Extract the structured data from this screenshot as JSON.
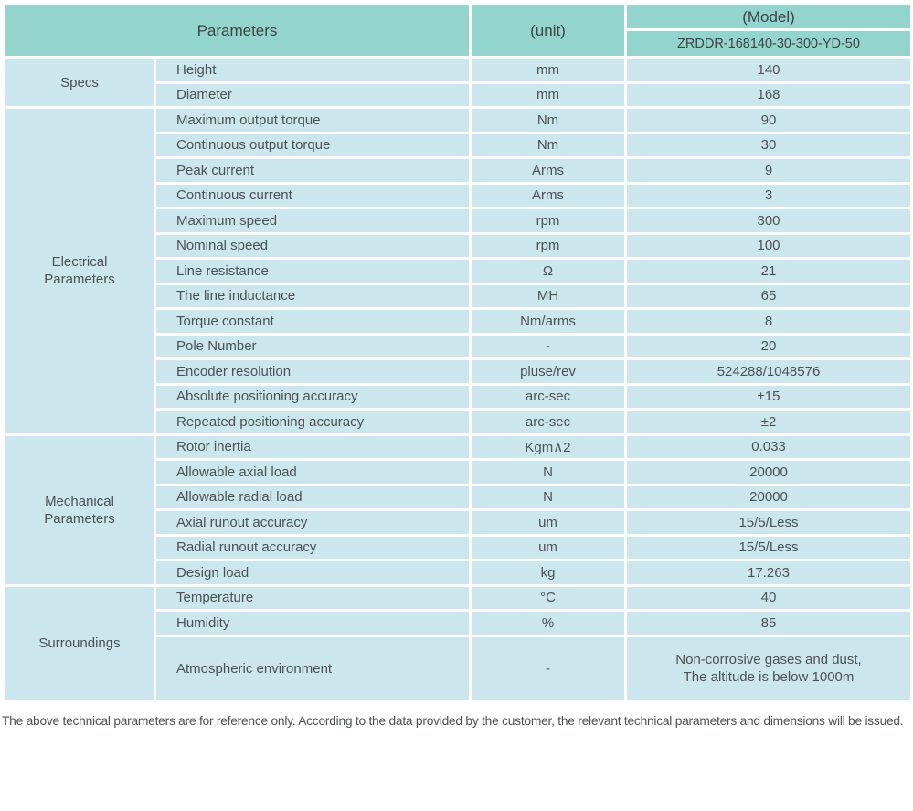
{
  "colors": {
    "header_bg": "#93d5cc",
    "cell_bg": "#cbe7ed",
    "grid": "#ffffff",
    "header_text": "#3e4345",
    "body_text": "#4c5154"
  },
  "header": {
    "parameters_label": "Parameters",
    "unit_label": "(unit)",
    "model_label": "(Model)",
    "model_value": "ZRDDR-168140-30-300-YD-50"
  },
  "sections": [
    {
      "label": "Specs",
      "rows": [
        {
          "param": "Height",
          "unit": "mm",
          "value": "140"
        },
        {
          "param": "Diameter",
          "unit": "mm",
          "value": "168"
        }
      ]
    },
    {
      "label": "Electrical\nParameters",
      "rows": [
        {
          "param": "Maximum output torque",
          "unit": "Nm",
          "value": "90"
        },
        {
          "param": "Continuous output torque",
          "unit": "Nm",
          "value": "30"
        },
        {
          "param": "Peak current",
          "unit": "Arms",
          "value": "9"
        },
        {
          "param": "Continuous current",
          "unit": "Arms",
          "value": "3"
        },
        {
          "param": "Maximum speed",
          "unit": "rpm",
          "value": "300"
        },
        {
          "param": "Nominal speed",
          "unit": "rpm",
          "value": "100"
        },
        {
          "param": "Line resistance",
          "unit": "Ω",
          "value": "21"
        },
        {
          "param": "The line inductance",
          "unit": "MH",
          "value": "65"
        },
        {
          "param": "Torque constant",
          "unit": "Nm/arms",
          "value": "8"
        },
        {
          "param": "Pole Number",
          "unit": "-",
          "value": "20"
        },
        {
          "param": "Encoder resolution",
          "unit": "pluse/rev",
          "value": "524288/1048576"
        },
        {
          "param": "Absolute positioning accuracy",
          "unit": "arc-sec",
          "value": "±15"
        },
        {
          "param": "Repeated positioning accuracy",
          "unit": "arc-sec",
          "value": "±2"
        }
      ]
    },
    {
      "label": "Mechanical\nParameters",
      "rows": [
        {
          "param": "Rotor inertia",
          "unit": "Kgm∧2",
          "value": "0.033"
        },
        {
          "param": "Allowable axial load",
          "unit": "N",
          "value": "20000"
        },
        {
          "param": "Allowable radial load",
          "unit": "N",
          "value": "20000"
        },
        {
          "param": "Axial runout accuracy",
          "unit": "um",
          "value": "15/5/Less"
        },
        {
          "param": "Radial runout accuracy",
          "unit": "um",
          "value": "15/5/Less"
        },
        {
          "param": "Design load",
          "unit": "kg",
          "value": "17.263"
        }
      ]
    },
    {
      "label": "Surroundings",
      "rows": [
        {
          "param": "Temperature",
          "unit": "°C",
          "value": "40"
        },
        {
          "param": "Humidity",
          "unit": "%",
          "value": "85"
        },
        {
          "param": "Atmospheric environment",
          "unit": "-",
          "value": "Non-corrosive gases and dust,\nThe altitude is below 1000m"
        }
      ]
    }
  ],
  "footer_note": "The above technical parameters are for reference only. According to the data provided by the customer, the relevant technical parameters and dimensions will be issued."
}
